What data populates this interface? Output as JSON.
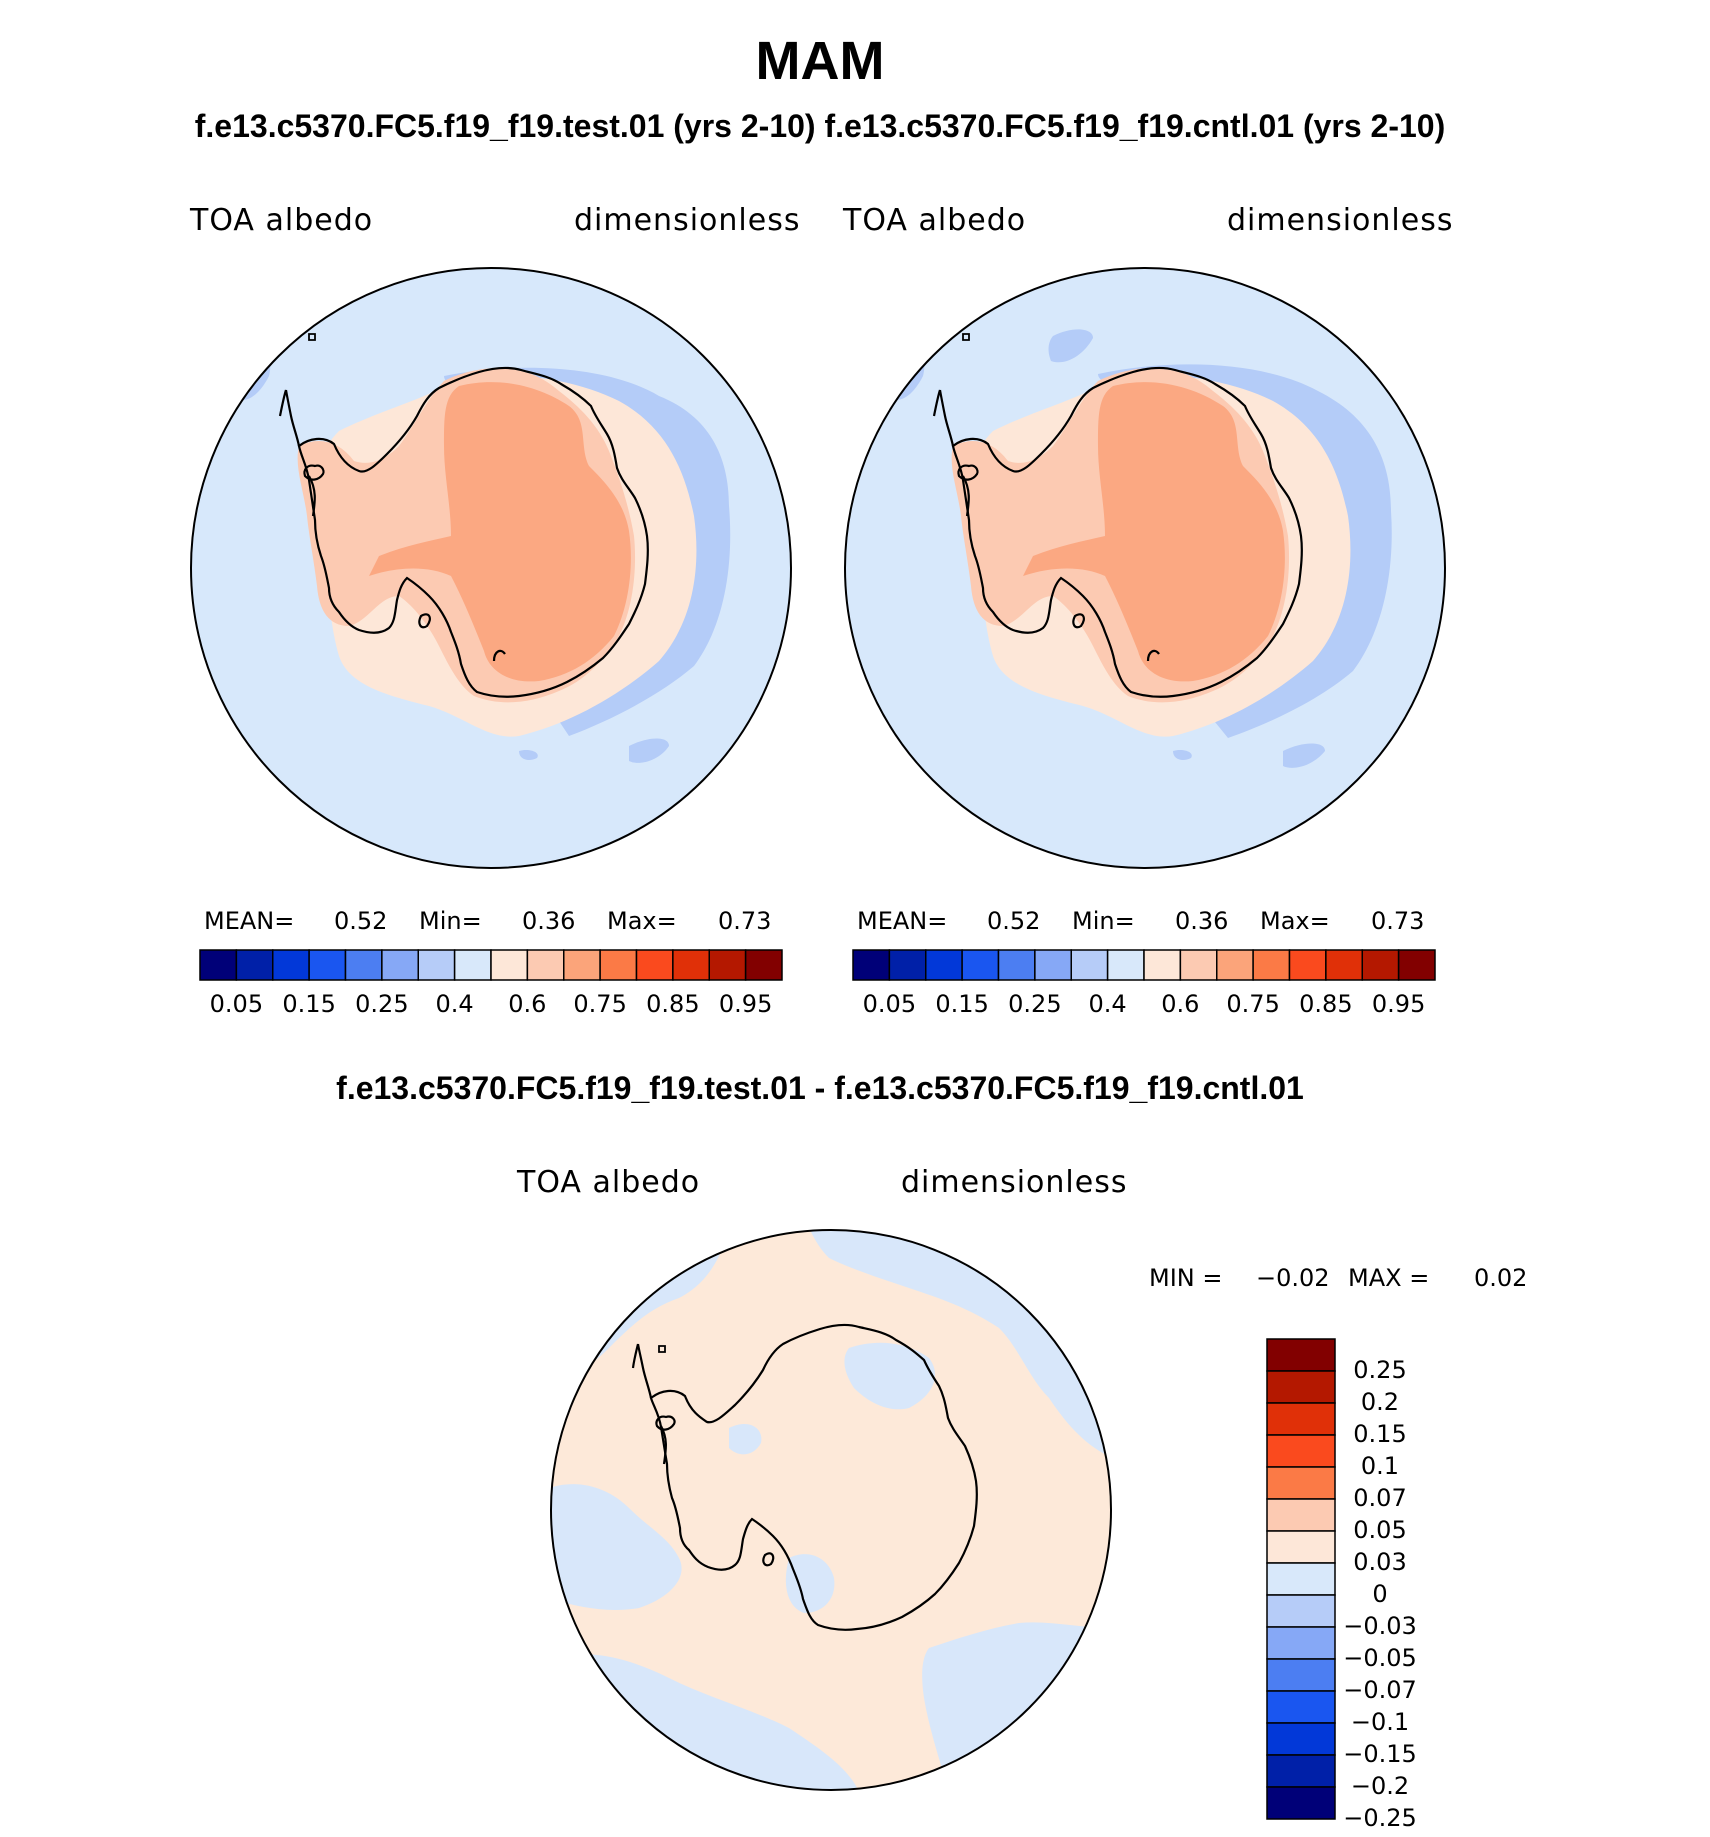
{
  "title": "MAM",
  "subtitle": "f.e13.c5370.FC5.f19_f19.test.01 (yrs 2-10) f.e13.c5370.FC5.f19_f19.cntl.01 (yrs 2-10)",
  "diff_title": "f.e13.c5370.FC5.f19_f19.test.01 - f.e13.c5370.FC5.f19_f19.cntl.01",
  "panels": [
    {
      "id": "test",
      "variable": "TOA albedo",
      "units": "dimensionless",
      "stats": {
        "mean_label": "MEAN=",
        "mean": "0.52",
        "min_label": "Min=",
        "min": "0.36",
        "max_label": "Max=",
        "max": "0.73"
      }
    },
    {
      "id": "cntl",
      "variable": "TOA albedo",
      "units": "dimensionless",
      "stats": {
        "mean_label": "MEAN=",
        "mean": "0.52",
        "min_label": "Min=",
        "min": "0.36",
        "max_label": "Max=",
        "max": "0.73"
      }
    },
    {
      "id": "diff",
      "variable": "TOA albedo",
      "units": "dimensionless",
      "stats": {
        "min_label": "MIN =",
        "min": "−0.02",
        "max_label": "MAX =",
        "max": "0.02"
      }
    }
  ],
  "colorbar_abs": {
    "tick_labels": [
      "0.05",
      "0.15",
      "0.25",
      "0.4",
      "0.6",
      "0.75",
      "0.85",
      "0.95"
    ],
    "colors": [
      "#000078",
      "#0020a8",
      "#0238d8",
      "#1a56f0",
      "#4c7ef2",
      "#86a8f6",
      "#b6ccf8",
      "#d8e8fa",
      "#fde7d8",
      "#fccab2",
      "#fba47a",
      "#fb7a46",
      "#fa4a1e",
      "#e03008",
      "#b41800",
      "#820000"
    ]
  },
  "colorbar_diff": {
    "tick_labels": [
      "0.25",
      "0.2",
      "0.15",
      "0.1",
      "0.07",
      "0.05",
      "0.03",
      "0",
      "−0.03",
      "−0.05",
      "−0.07",
      "−0.1",
      "−0.15",
      "−0.2",
      "−0.25"
    ],
    "colors": [
      "#820000",
      "#b41800",
      "#e03008",
      "#fa4a1e",
      "#fb7a46",
      "#fccab2",
      "#fde7d8",
      "#d8e8fa",
      "#b6ccf8",
      "#86a8f6",
      "#4c7ef2",
      "#1a56f0",
      "#0238d8",
      "#0020a8",
      "#000078"
    ]
  },
  "colors": {
    "ocean_light_blue": "#d7e8fb",
    "sea_ice_blue": "#b4ccf8",
    "coast_peach": "#fde7d8",
    "ice_light": "#fccab2",
    "ice_orange": "#fba882",
    "diff_positive": "#fde9d9",
    "diff_negative": "#d8e7fa",
    "coastline": "#000000"
  }
}
